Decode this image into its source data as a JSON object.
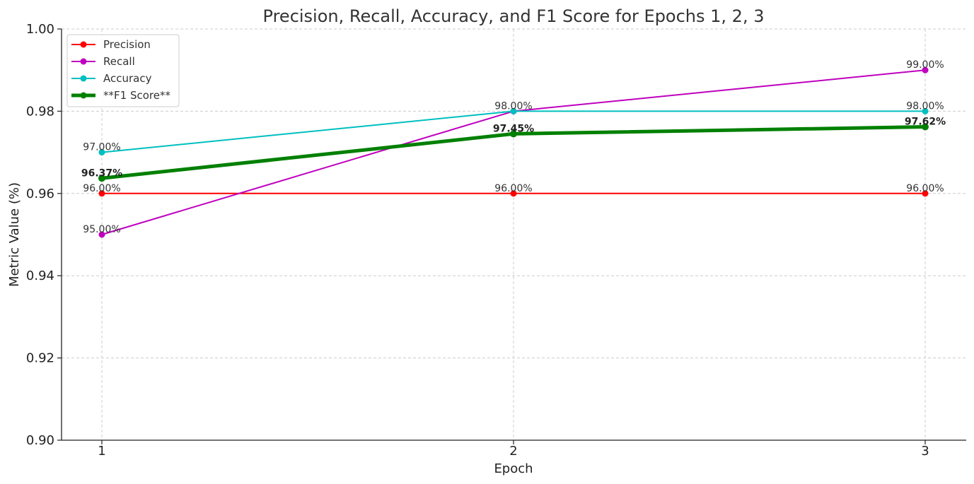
{
  "chart_data": {
    "type": "line",
    "title": "Precision, Recall, Accuracy, and F1 Score for Epochs 1, 2, 3",
    "xlabel": "Epoch",
    "ylabel": "Metric Value (%)",
    "x": [
      1,
      2,
      3
    ],
    "x_tick_labels": [
      "1",
      "2",
      "3"
    ],
    "ylim": [
      0.9,
      1.0
    ],
    "y_ticks": [
      0.9,
      0.92,
      0.94,
      0.96,
      0.98,
      1.0
    ],
    "y_tick_labels": [
      "0.90",
      "0.92",
      "0.94",
      "0.96",
      "0.98",
      "1.00"
    ],
    "grid": true,
    "legend_position": "top-left",
    "series": [
      {
        "name": "Precision",
        "color": "#ff0000",
        "values": [
          0.96,
          0.96,
          0.96
        ],
        "labels": [
          "96.00%",
          "96.00%",
          "96.00%"
        ],
        "emphasis": false
      },
      {
        "name": "Recall",
        "color": "#bf00bf",
        "values": [
          0.95,
          0.98,
          0.99
        ],
        "labels": [
          "95.00%",
          "98.00%",
          "99.00%"
        ],
        "emphasis": false
      },
      {
        "name": "Accuracy",
        "color": "#00bfbf",
        "values": [
          0.97,
          0.98,
          0.98
        ],
        "labels": [
          "97.00%",
          "",
          "98.00%"
        ],
        "emphasis": false
      },
      {
        "name": "**F1 Score**",
        "color": "#008000",
        "values": [
          0.9637,
          0.9745,
          0.9762
        ],
        "labels": [
          "96.37%",
          "97.45%",
          "97.62%"
        ],
        "emphasis": true
      }
    ]
  }
}
